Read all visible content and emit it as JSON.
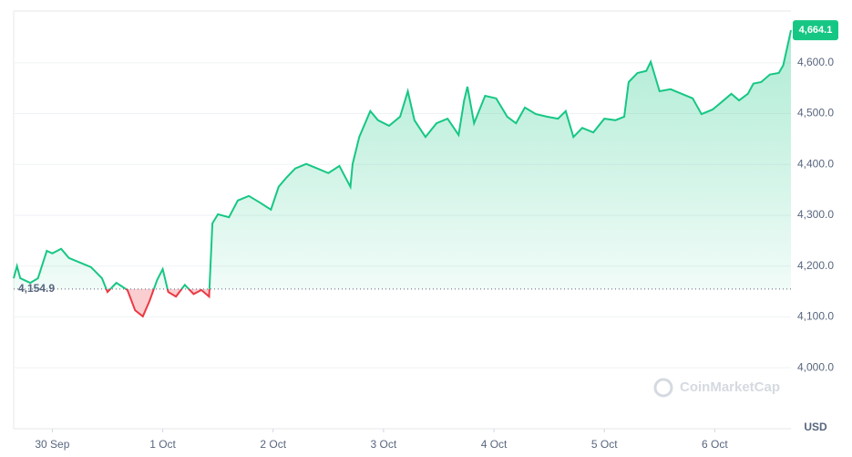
{
  "chart_data": {
    "type": "line",
    "x": [
      -0.35,
      -0.32,
      -0.29,
      -0.2,
      -0.13,
      -0.05,
      0.0,
      0.08,
      0.15,
      0.25,
      0.35,
      0.45,
      0.5,
      0.58,
      0.68,
      0.75,
      0.82,
      0.88,
      0.95,
      1.0,
      1.05,
      1.12,
      1.2,
      1.28,
      1.35,
      1.42,
      1.45,
      1.5,
      1.6,
      1.68,
      1.78,
      1.88,
      1.98,
      2.05,
      2.12,
      2.2,
      2.3,
      2.4,
      2.5,
      2.6,
      2.7,
      2.72,
      2.78,
      2.88,
      2.95,
      3.05,
      3.15,
      3.22,
      3.28,
      3.38,
      3.48,
      3.58,
      3.68,
      3.73,
      3.76,
      3.82,
      3.92,
      4.02,
      4.12,
      4.2,
      4.28,
      4.38,
      4.48,
      4.58,
      4.65,
      4.72,
      4.8,
      4.9,
      5.0,
      5.1,
      5.18,
      5.22,
      5.3,
      5.38,
      5.42,
      5.5,
      5.6,
      5.7,
      5.8,
      5.88,
      5.98,
      6.08,
      6.15,
      6.22,
      6.3,
      6.35,
      6.42,
      6.5,
      6.58,
      6.62,
      6.66,
      6.69
    ],
    "series": [
      {
        "name": "Price",
        "color": "#16c784",
        "down_color": "#ea3943",
        "values": [
          4176,
          4200,
          4176,
          4167,
          4176,
          4230,
          4225,
          4234,
          4216,
          4207,
          4198,
          4176,
          4149,
          4167,
          4153,
          4113,
          4101,
          4131,
          4173,
          4194,
          4149,
          4140,
          4163,
          4145,
          4153,
          4140,
          4284,
          4302,
          4296,
          4329,
          4338,
          4325,
          4311,
          4356,
          4374,
          4392,
          4401,
          4392,
          4383,
          4397,
          4356,
          4401,
          4454,
          4505,
          4487,
          4476,
          4494,
          4544,
          4487,
          4454,
          4481,
          4490,
          4458,
          4526,
          4553,
          4481,
          4535,
          4530,
          4494,
          4481,
          4512,
          4499,
          4494,
          4490,
          4505,
          4454,
          4472,
          4463,
          4490,
          4487,
          4494,
          4562,
          4580,
          4584,
          4602,
          4544,
          4548,
          4539,
          4530,
          4499,
          4508,
          4526,
          4539,
          4526,
          4539,
          4559,
          4562,
          4577,
          4580,
          4595,
          4634,
          4664.1
        ]
      }
    ],
    "baseline": {
      "value": 4154.9,
      "label": "4,154.9"
    },
    "last_price": {
      "value": 4664.1,
      "label": "4,664.1"
    },
    "xlim": [
      -0.35,
      6.69
    ],
    "xticks": [
      {
        "value": 0,
        "label": "30 Sep"
      },
      {
        "value": 1,
        "label": "1 Oct"
      },
      {
        "value": 2,
        "label": "2 Oct"
      },
      {
        "value": 3,
        "label": "3 Oct"
      },
      {
        "value": 4,
        "label": "4 Oct"
      },
      {
        "value": 5,
        "label": "5 Oct"
      },
      {
        "value": 6,
        "label": "6 Oct"
      }
    ],
    "ylim": [
      3880,
      4702
    ],
    "yticks": [
      {
        "value": 4000,
        "label": "4,000.0"
      },
      {
        "value": 4100,
        "label": "4,100.0"
      },
      {
        "value": 4200,
        "label": "4,200.0"
      },
      {
        "value": 4300,
        "label": "4,300.0"
      },
      {
        "value": 4400,
        "label": "4,400.0"
      },
      {
        "value": 4500,
        "label": "4,500.0"
      },
      {
        "value": 4600,
        "label": "4,600.0"
      }
    ],
    "currency": "USD",
    "watermark": "CoinMarketCap",
    "grid": true
  }
}
